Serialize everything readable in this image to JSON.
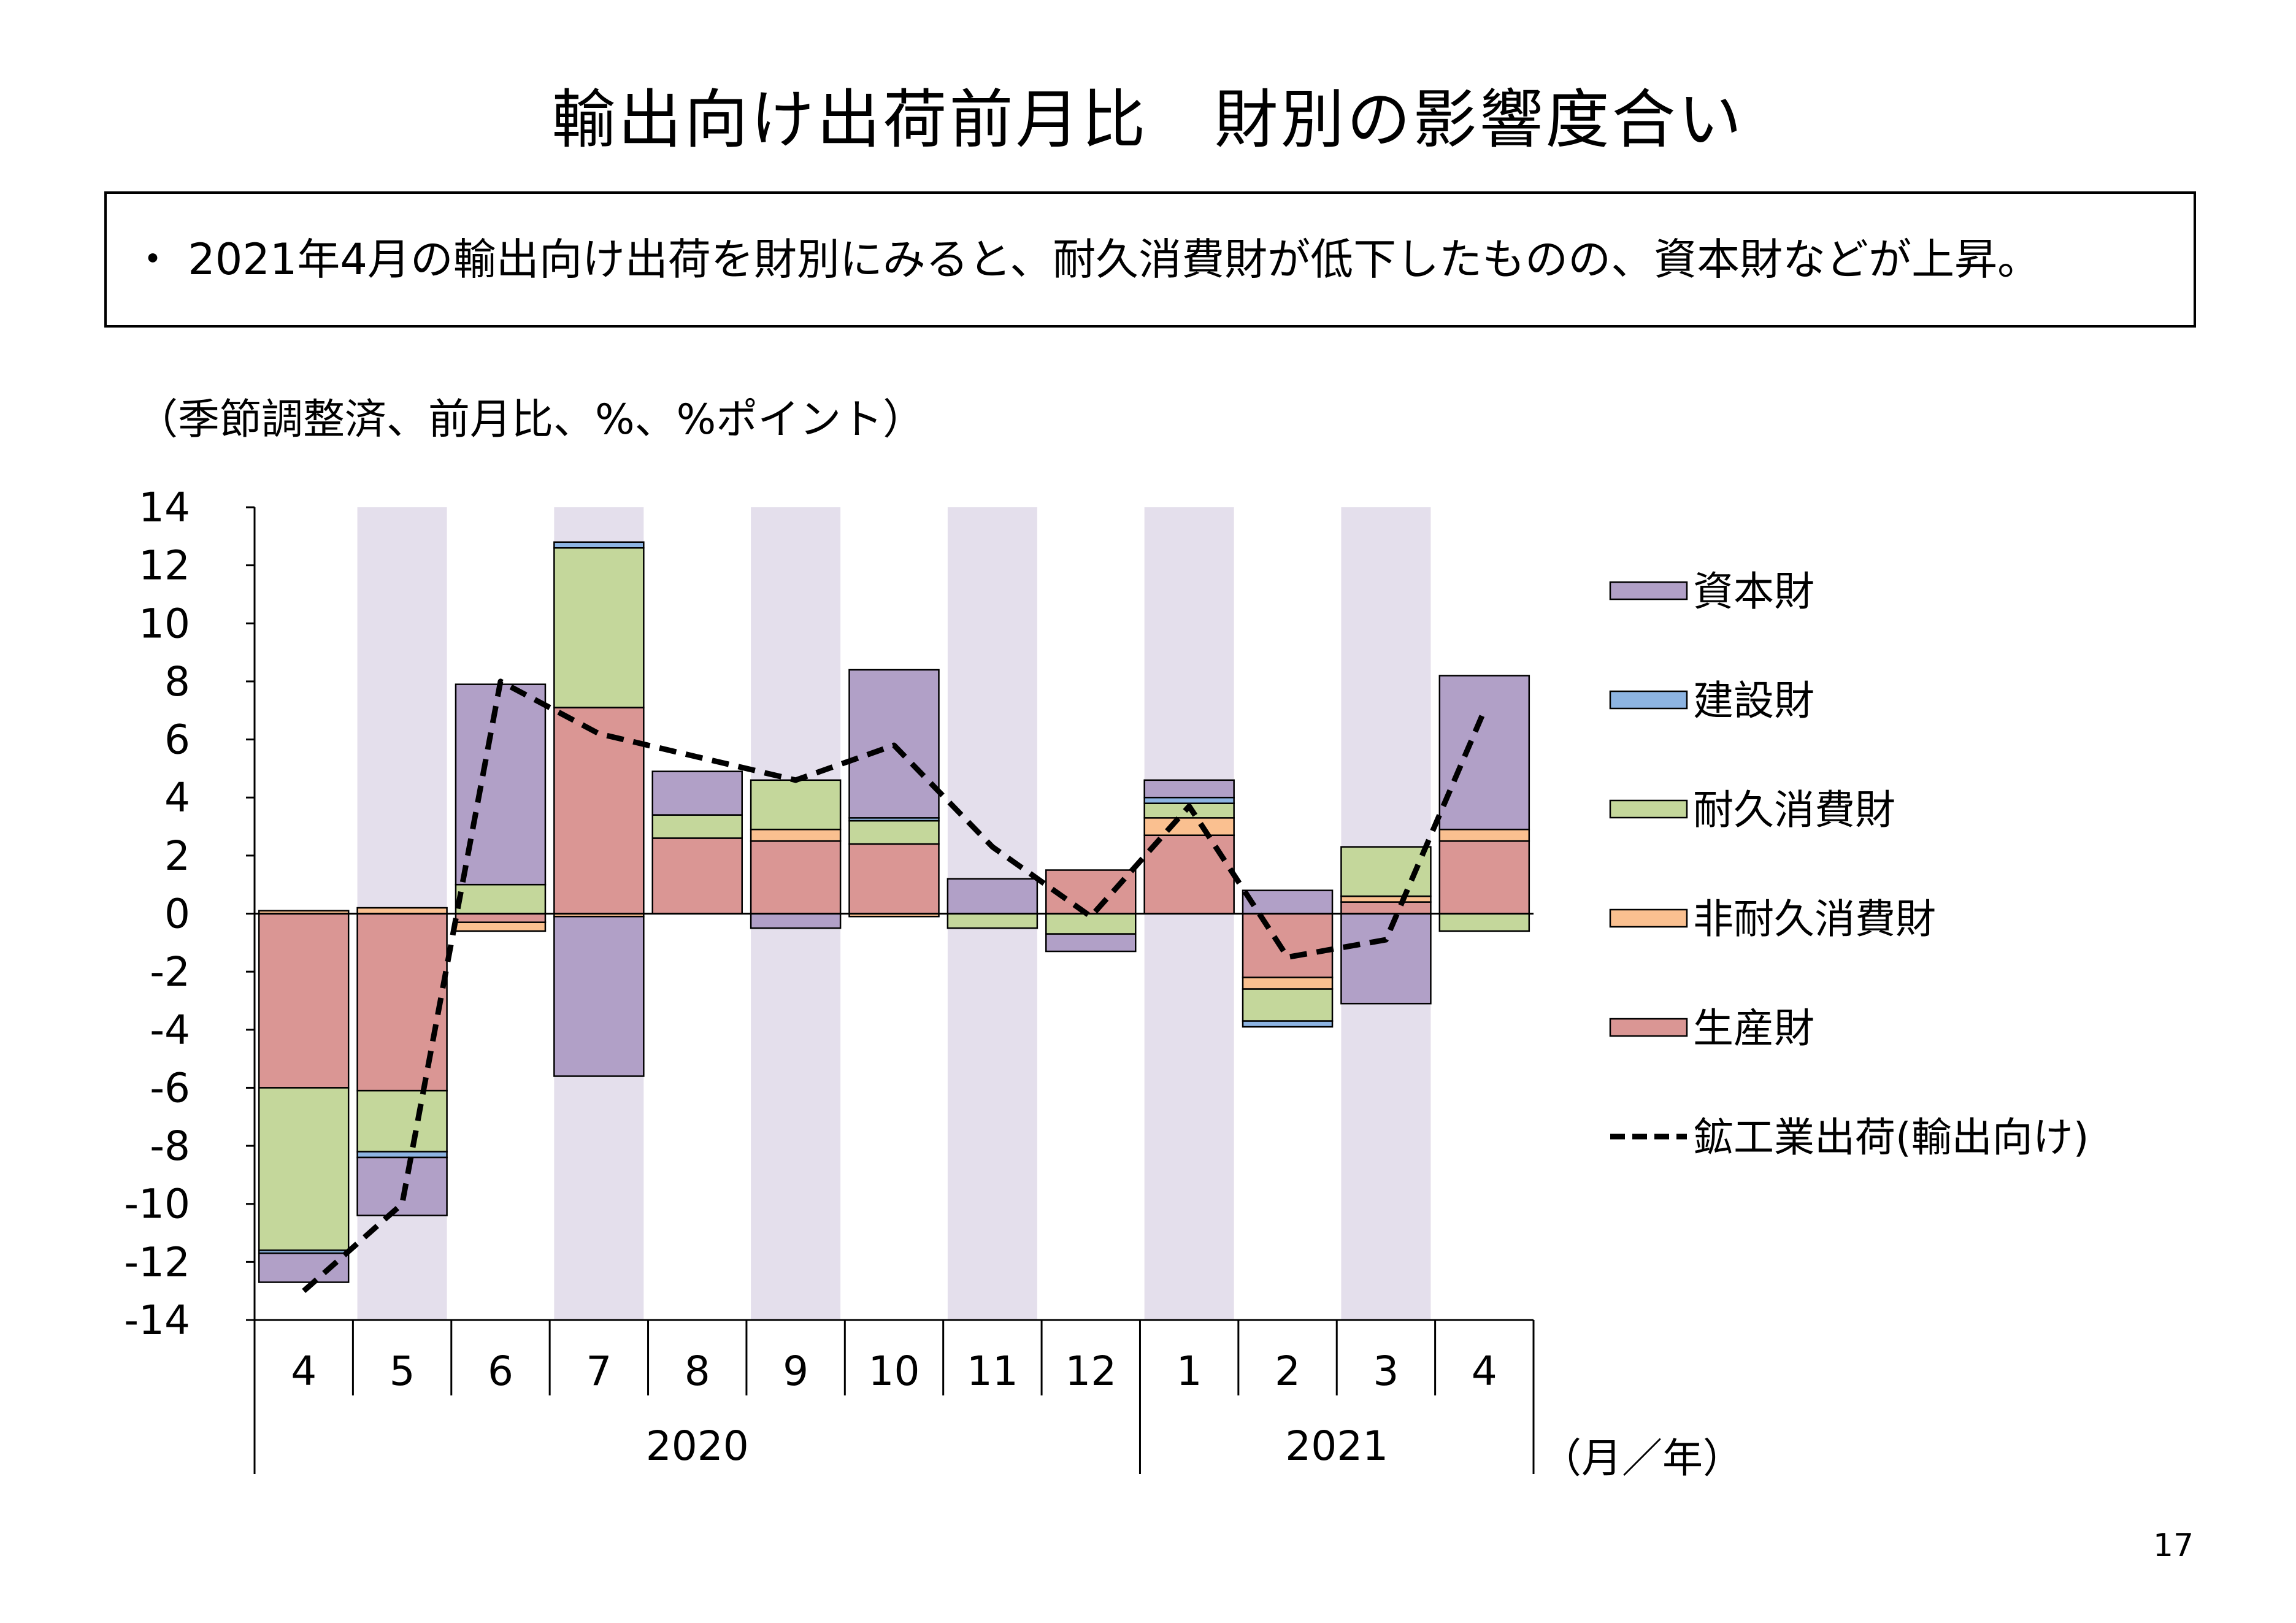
{
  "title": "輸出向け出荷前月比　財別の影響度合い",
  "summary": "・ 2021年4月の輸出向け出荷を財別にみると、耐久消費財が低下したものの、資本財などが上昇。",
  "unit_note": "（季節調整済、前月比、%、%ポイント）",
  "page_number": "17",
  "colors": {
    "capital": "#b1a0c7",
    "construction": "#8db4e2",
    "durable": "#c4d79b",
    "nondurable": "#fac090",
    "producer": "#da9694",
    "line": "#000000",
    "shade": "#e4dfec"
  },
  "chart_data": {
    "type": "bar",
    "stacked": true,
    "categories": [
      "4",
      "5",
      "6",
      "7",
      "8",
      "9",
      "10",
      "11",
      "12",
      "1",
      "2",
      "3",
      "4"
    ],
    "years": [
      {
        "label": "2020",
        "start": 0,
        "end": 8
      },
      {
        "label": "2021",
        "start": 9,
        "end": 12
      }
    ],
    "x_unit_label": "（月／年）",
    "ylim": [
      -14,
      14
    ],
    "y_ticks": [
      "14",
      "12",
      "10",
      "8",
      "6",
      "4",
      "2",
      "0",
      "-2",
      "-4",
      "-6",
      "-8",
      "-10",
      "-12",
      "-14"
    ],
    "shaded_categories": [
      1,
      3,
      5,
      7,
      9,
      11
    ],
    "legend_position": "right",
    "series": [
      {
        "name": "生産財",
        "key": "producer",
        "values": [
          -6.0,
          -6.1,
          -0.3,
          7.1,
          2.6,
          2.5,
          2.4,
          0.0,
          1.5,
          2.7,
          -2.2,
          0.4,
          2.5
        ]
      },
      {
        "name": "非耐久消費財",
        "key": "nondurable",
        "values": [
          0.1,
          0.2,
          -0.3,
          -0.1,
          0.0,
          0.4,
          -0.1,
          0.0,
          0.0,
          0.6,
          -0.4,
          0.2,
          0.4
        ]
      },
      {
        "name": "耐久消費財",
        "key": "durable",
        "values": [
          -5.6,
          -2.1,
          1.0,
          5.5,
          0.8,
          1.7,
          0.8,
          -0.5,
          -0.7,
          0.5,
          -1.1,
          1.7,
          -0.6
        ]
      },
      {
        "name": "建設財",
        "key": "construction",
        "values": [
          -0.1,
          -0.2,
          0.0,
          0.2,
          0.0,
          0.0,
          0.1,
          0.0,
          0.0,
          0.2,
          -0.2,
          0.0,
          0.0
        ]
      },
      {
        "name": "資本財",
        "key": "capital",
        "values": [
          -1.0,
          -2.0,
          6.9,
          -5.5,
          1.5,
          -0.5,
          5.1,
          1.2,
          -0.6,
          0.6,
          0.8,
          -3.1,
          5.3
        ]
      }
    ],
    "line": {
      "name": "鉱工業出荷(輸出向け)",
      "values": [
        -13.0,
        -10.0,
        8.0,
        6.2,
        5.4,
        4.6,
        5.8,
        2.3,
        -0.1,
        3.7,
        -1.5,
        -0.9,
        7.0
      ]
    },
    "legend": [
      {
        "name": "資本財",
        "key": "capital"
      },
      {
        "name": "建設財",
        "key": "construction"
      },
      {
        "name": "耐久消費財",
        "key": "durable"
      },
      {
        "name": "非耐久消費財",
        "key": "nondurable"
      },
      {
        "name": "生産財",
        "key": "producer"
      },
      {
        "name": "鉱工業出荷(輸出向け)",
        "key": "line"
      }
    ]
  }
}
